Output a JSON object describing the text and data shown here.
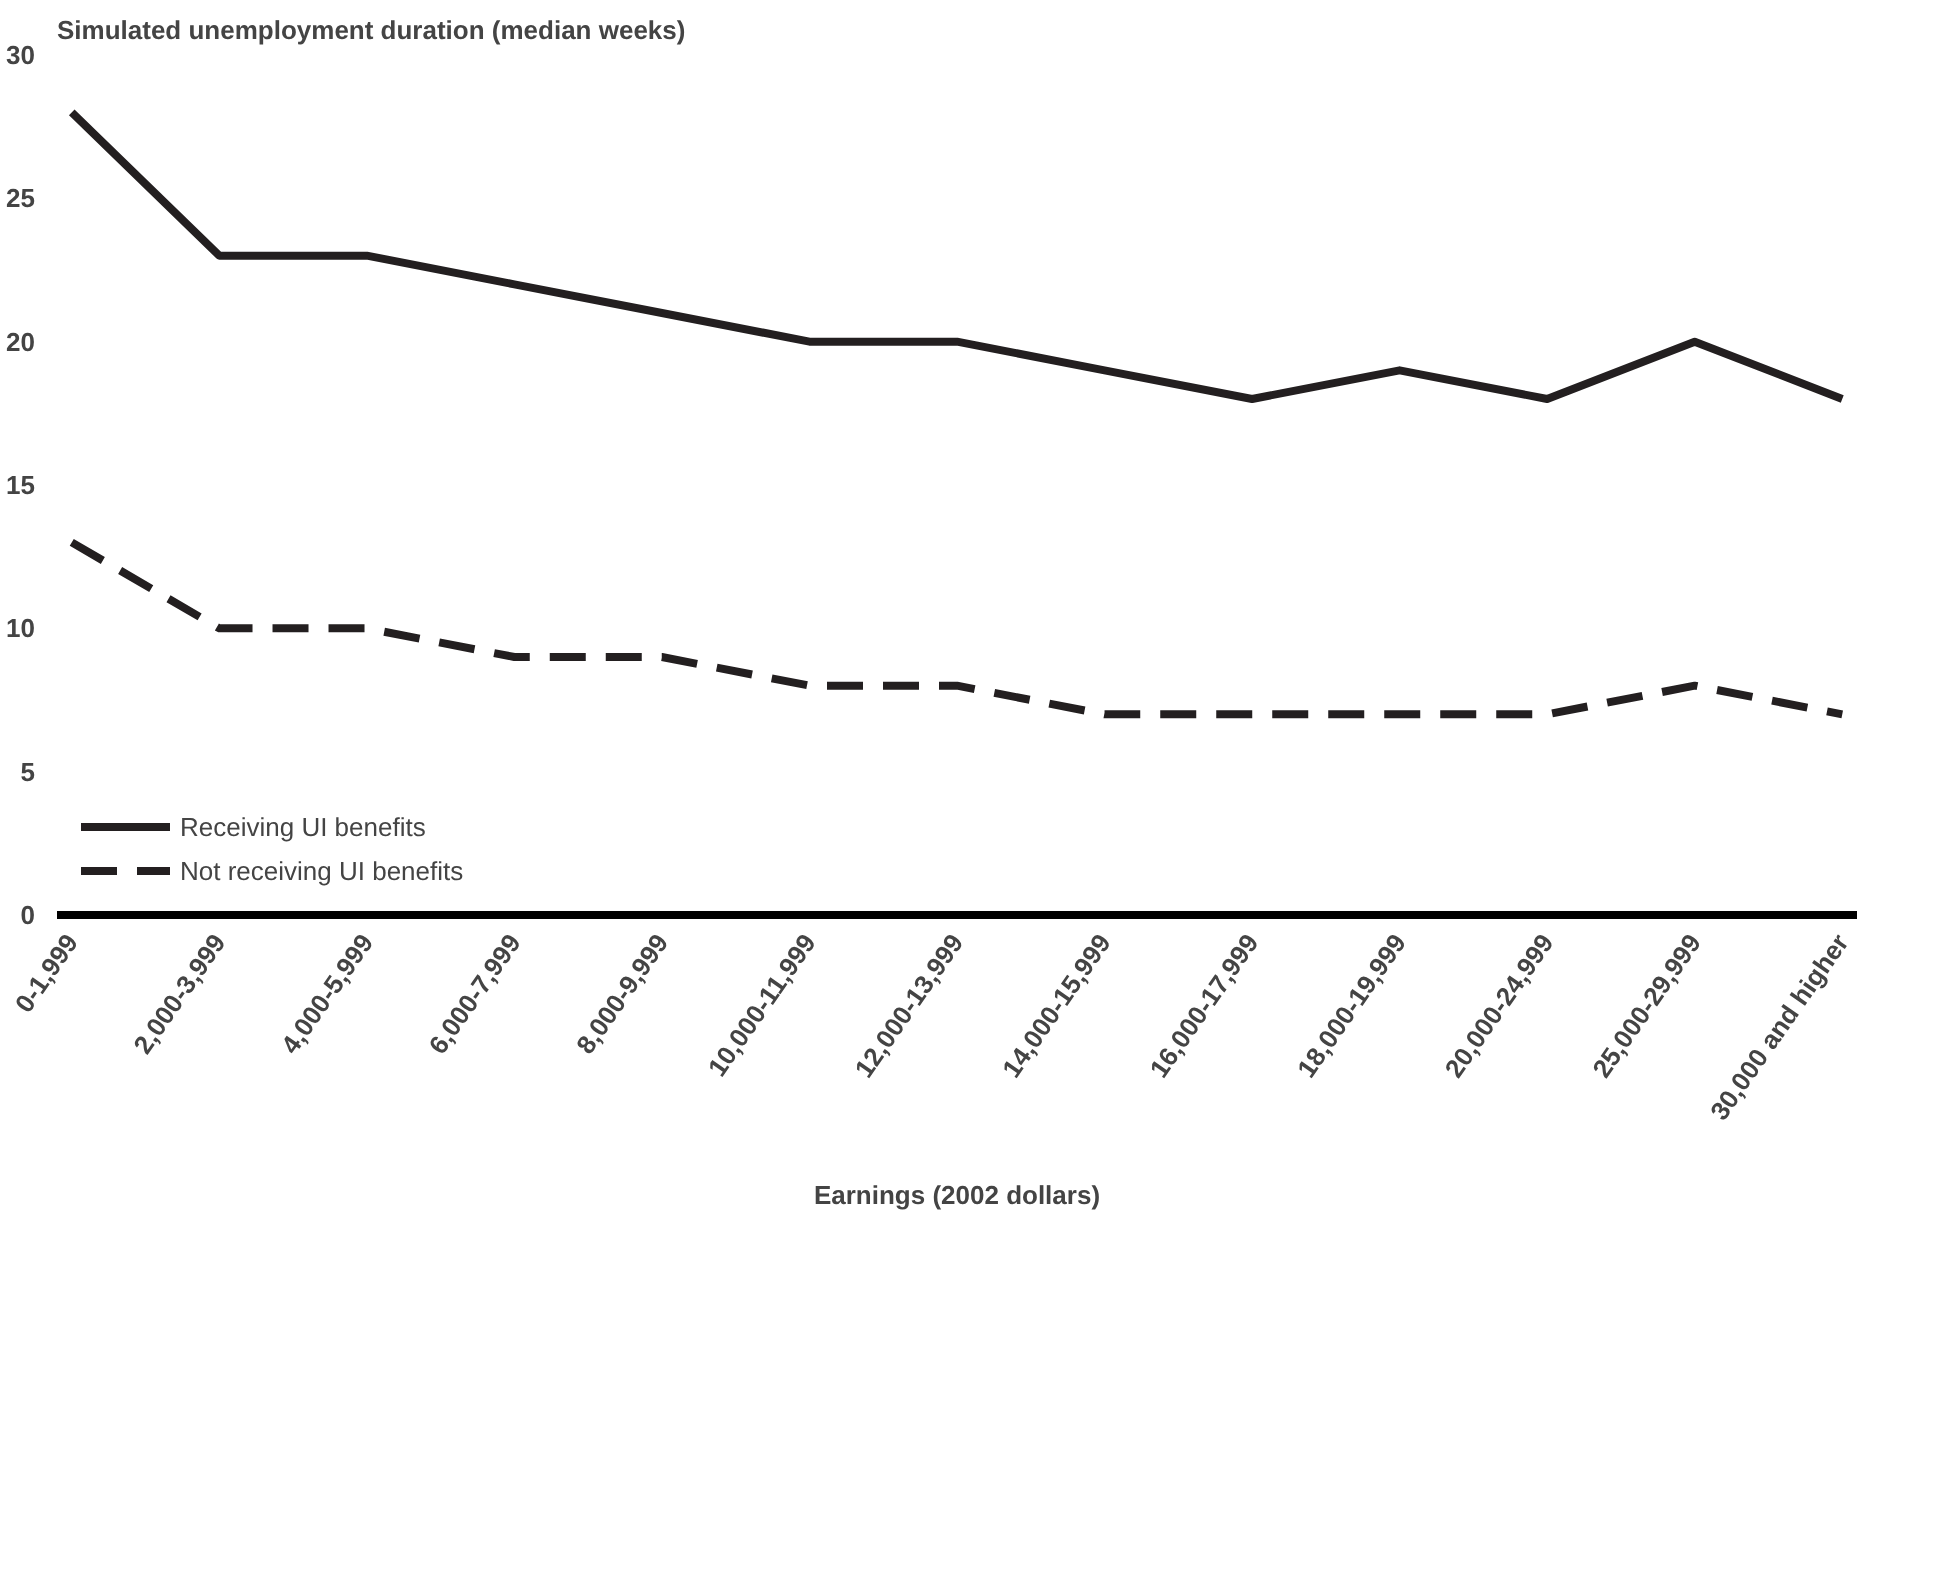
{
  "chart_data": {
    "type": "line",
    "title": "Simulated unemployment duration (median weeks)",
    "xlabel": "Earnings (2002 dollars)",
    "categories": [
      "0-1,999",
      "2,000-3,999",
      "4,000-5,999",
      "6,000-7,999",
      "8,000-9,999",
      "10,000-11,999",
      "12,000-13,999",
      "14,000-15,999",
      "16,000-17,999",
      "18,000-19,999",
      "20,000-24,999",
      "25,000-29,999",
      "30,000 and higher"
    ],
    "series": [
      {
        "name": "Receiving UI benefits",
        "color": "#231f20",
        "line_style": "solid",
        "values": [
          28,
          23,
          23,
          22,
          21,
          20,
          20,
          19,
          18,
          19,
          18,
          20,
          18
        ]
      },
      {
        "name": "Not receiving UI benefits",
        "color": "#231f20",
        "line_style": "dashed",
        "values": [
          13,
          10,
          10,
          9,
          9,
          8,
          8,
          7,
          7,
          7,
          7,
          8,
          7
        ]
      }
    ],
    "ylim": [
      0,
      30
    ],
    "yticks": [
      0,
      5,
      10,
      15,
      20,
      25,
      30
    ],
    "grid": false,
    "legend": "bottom left",
    "marker": "none"
  }
}
